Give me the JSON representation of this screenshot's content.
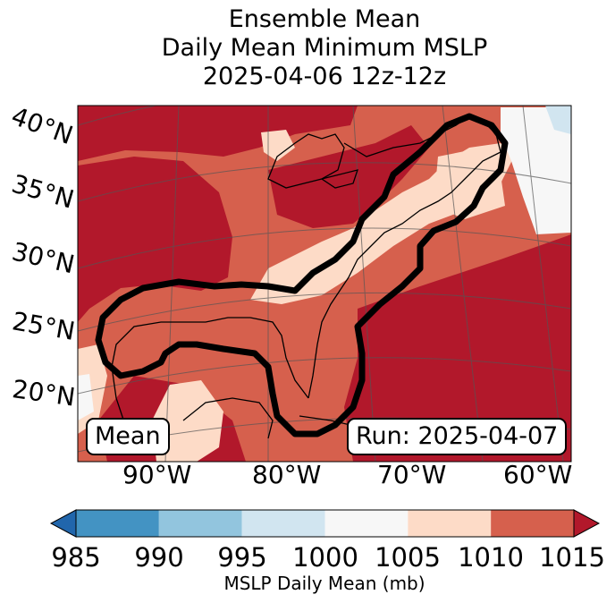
{
  "title": {
    "line1": "Ensemble Mean",
    "line2": "Daily Mean Minimum MSLP",
    "line3": "2025-04-06 12z-12z"
  },
  "map": {
    "lat_labels": [
      "40°N",
      "35°N",
      "30°N",
      "25°N",
      "20°N"
    ],
    "lon_labels": [
      "90°W",
      "80°W",
      "70°W",
      "60°W"
    ],
    "mean_box": "Mean",
    "run_box": "Run: 2025-04-07",
    "colors": {
      "lt1010": "#d6604d",
      "lt1015": "#b2182b",
      "lt1005": "#fddbc7",
      "lt1000": "#f7f7f7",
      "lt995": "#d1e5f0"
    }
  },
  "colorbar": {
    "levels": [
      "985",
      "990",
      "995",
      "1000",
      "1005",
      "1010",
      "1015"
    ],
    "colors": [
      "#2166ac",
      "#4393c3",
      "#92c5de",
      "#d1e5f0",
      "#f7f7f7",
      "#fddbc7",
      "#d6604d",
      "#b2182b"
    ],
    "label": "MSLP Daily Mean (mb)"
  }
}
